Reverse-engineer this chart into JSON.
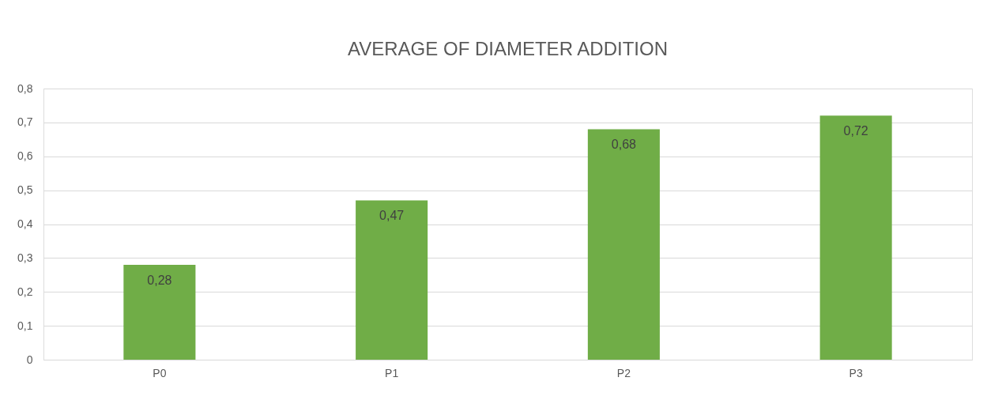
{
  "chart_data": {
    "type": "bar",
    "title": "AVERAGE OF DIAMETER ADDITION",
    "categories": [
      "P0",
      "P1",
      "P2",
      "P3"
    ],
    "values": [
      0.28,
      0.47,
      0.68,
      0.72
    ],
    "value_labels": [
      "0,28",
      "0,47",
      "0,68",
      "0,72"
    ],
    "color": "#70ad47",
    "ylim": [
      0,
      0.8
    ],
    "yticks": [
      {
        "value": 0,
        "label": "0"
      },
      {
        "value": 0.1,
        "label": "0,1"
      },
      {
        "value": 0.2,
        "label": "0,2"
      },
      {
        "value": 0.3,
        "label": "0,3"
      },
      {
        "value": 0.4,
        "label": "0,4"
      },
      {
        "value": 0.5,
        "label": "0,5"
      },
      {
        "value": 0.6,
        "label": "0,6"
      },
      {
        "value": 0.7,
        "label": "0,7"
      },
      {
        "value": 0.8,
        "label": "0,8"
      }
    ],
    "grid": "y"
  }
}
